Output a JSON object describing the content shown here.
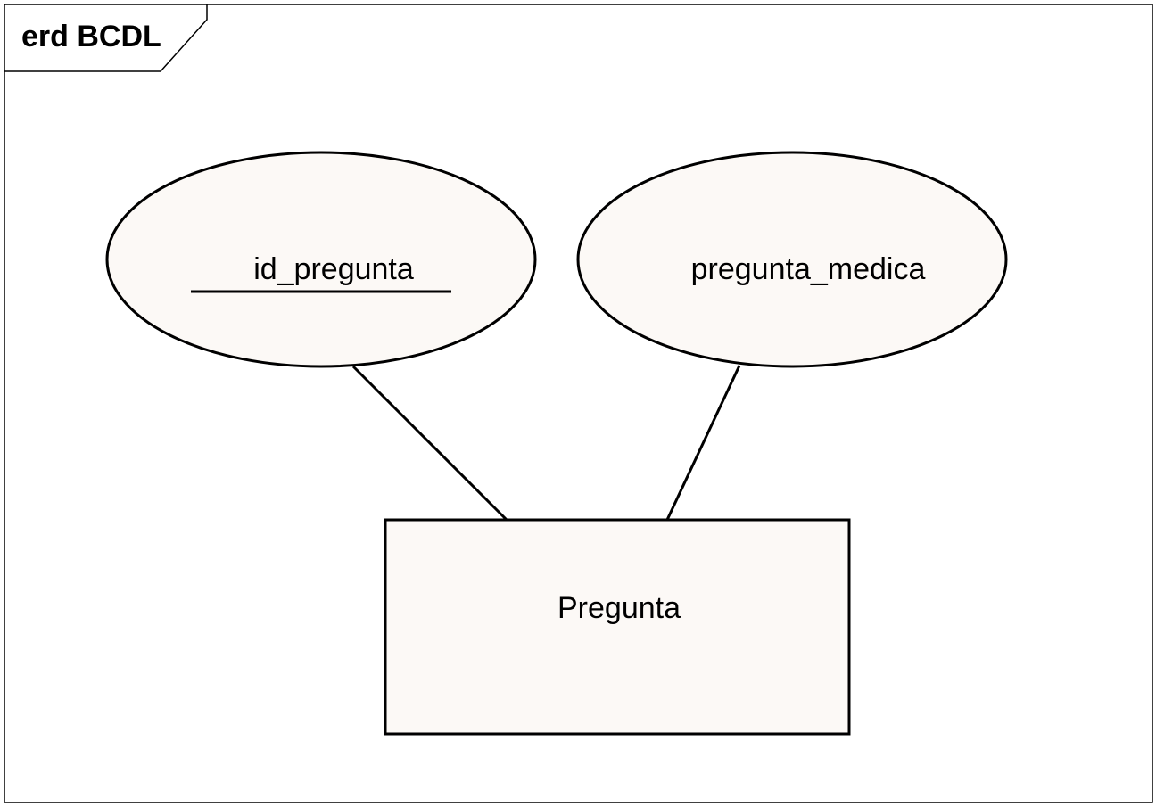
{
  "frame": {
    "title": "erd BCDL"
  },
  "entity": {
    "name": "Pregunta"
  },
  "attributes": [
    {
      "name": "id_pregunta",
      "is_key": true
    },
    {
      "name": "pregunta_medica",
      "is_key": false
    }
  ],
  "colors": {
    "shape_fill": "#fcf9f6",
    "stroke": "#000000",
    "background": "#ffffff"
  }
}
